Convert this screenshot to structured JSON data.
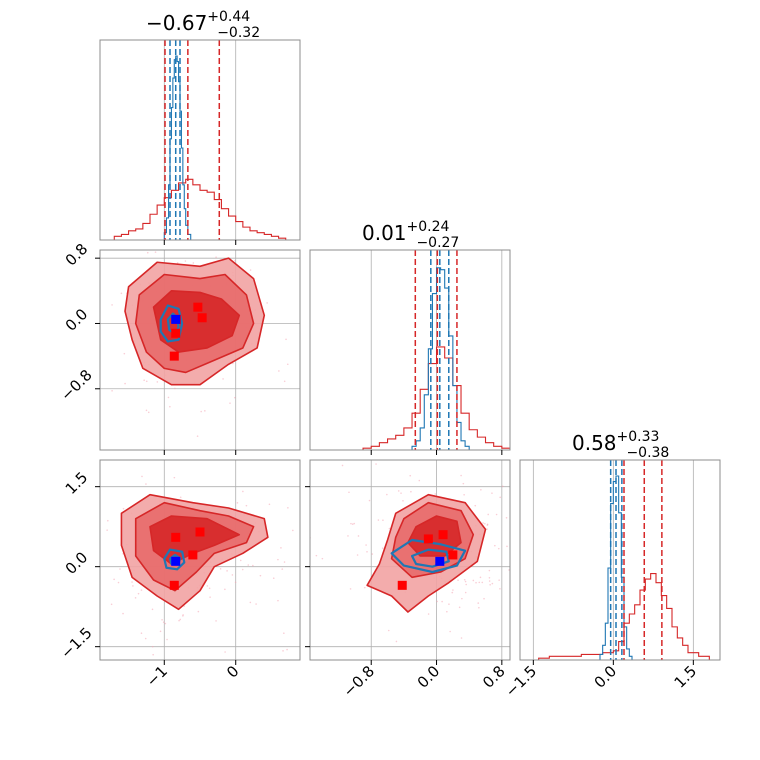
{
  "colors": {
    "red": "#d62728",
    "red_light": "#f2a3a3",
    "red_mid": "#e86a6a",
    "blue": "#1f77b4",
    "marker_red": "#ff0000",
    "marker_blue": "#0000ff"
  },
  "chart_data": {
    "type": "corner",
    "grid": true,
    "params": [
      {
        "range": [
          -1.9,
          0.9
        ],
        "ticks": [
          -1,
          0
        ],
        "tick_labels": [
          "−1",
          "0"
        ],
        "title": {
          "median": "−0.67",
          "plus": "+0.44",
          "minus": "−0.32"
        },
        "red_quantiles": [
          -0.99,
          -0.67,
          -0.23
        ],
        "blue_quantiles": [
          -0.92,
          -0.84,
          -0.78
        ]
      },
      {
        "range": [
          -1.55,
          0.9
        ],
        "ticks": [
          -0.8,
          0.0,
          0.8
        ],
        "tick_labels": [
          "−0.8",
          "0.0",
          "0.8"
        ],
        "title": {
          "median": "0.01",
          "plus": "+0.24",
          "minus": "−0.27"
        },
        "red_quantiles": [
          -0.26,
          0.01,
          0.25
        ],
        "blue_quantiles": [
          -0.07,
          0.04,
          0.15
        ]
      },
      {
        "range": [
          -1.75,
          2.0
        ],
        "ticks": [
          -1.5,
          0.0,
          1.5
        ],
        "tick_labels": [
          "−1.5",
          "0.0",
          "1.5"
        ],
        "title": {
          "median": "0.58",
          "plus": "+0.33",
          "minus": "−0.38"
        },
        "red_quantiles": [
          0.2,
          0.58,
          0.91
        ],
        "blue_quantiles": [
          -0.05,
          0.05,
          0.16
        ]
      }
    ],
    "hist_red": [
      {
        "x": [
          -1.9,
          -1.8,
          -1.7,
          -1.6,
          -1.5,
          -1.4,
          -1.3,
          -1.2,
          -1.1,
          -1.0,
          -0.9,
          -0.8,
          -0.7,
          -0.6,
          -0.5,
          -0.4,
          -0.3,
          -0.2,
          -0.1,
          0.0,
          0.1,
          0.2,
          0.3,
          0.4,
          0.5,
          0.6,
          0.7
        ],
        "y": [
          0,
          0,
          0.02,
          0.03,
          0.05,
          0.06,
          0.09,
          0.14,
          0.19,
          0.23,
          0.27,
          0.31,
          0.33,
          0.3,
          0.27,
          0.26,
          0.22,
          0.17,
          0.13,
          0.1,
          0.07,
          0.05,
          0.04,
          0.03,
          0.02,
          0.01,
          0
        ]
      },
      {
        "x": [
          -1.0,
          -0.9,
          -0.8,
          -0.7,
          -0.6,
          -0.5,
          -0.4,
          -0.3,
          -0.2,
          -0.1,
          0.0,
          0.1,
          0.2,
          0.3,
          0.4,
          0.5,
          0.6,
          0.7,
          0.8,
          0.9
        ],
        "y": [
          0,
          0.01,
          0.02,
          0.04,
          0.06,
          0.08,
          0.12,
          0.2,
          0.33,
          0.47,
          0.56,
          0.5,
          0.35,
          0.2,
          0.11,
          0.07,
          0.04,
          0.02,
          0.01,
          0
        ]
      },
      {
        "x": [
          -1.6,
          -1.4,
          -1.2,
          -1.0,
          -0.8,
          -0.6,
          -0.4,
          -0.2,
          0.0,
          0.1,
          0.2,
          0.3,
          0.4,
          0.5,
          0.6,
          0.7,
          0.8,
          0.9,
          1.0,
          1.1,
          1.2,
          1.3,
          1.4,
          1.6,
          1.8
        ],
        "y": [
          0,
          0.01,
          0.02,
          0.02,
          0.02,
          0.03,
          0.03,
          0.04,
          0.05,
          0.1,
          0.2,
          0.25,
          0.3,
          0.38,
          0.44,
          0.47,
          0.42,
          0.35,
          0.28,
          0.18,
          0.12,
          0.08,
          0.04,
          0.02,
          0
        ]
      }
    ],
    "hist_blue": [
      {
        "x": [
          -1.05,
          -1.0,
          -0.97,
          -0.94,
          -0.92,
          -0.9,
          -0.88,
          -0.86,
          -0.84,
          -0.82,
          -0.8,
          -0.78,
          -0.76,
          -0.74,
          -0.72,
          -0.7,
          -0.67,
          -0.63
        ],
        "y": [
          0,
          0.04,
          0.12,
          0.3,
          0.55,
          0.72,
          0.88,
          0.98,
          1.0,
          0.97,
          0.86,
          0.7,
          0.5,
          0.3,
          0.17,
          0.08,
          0.03,
          0
        ]
      },
      {
        "x": [
          -0.35,
          -0.3,
          -0.25,
          -0.2,
          -0.15,
          -0.1,
          -0.05,
          0.0,
          0.05,
          0.1,
          0.15,
          0.2,
          0.25,
          0.3,
          0.35,
          0.4
        ],
        "y": [
          0,
          0.02,
          0.05,
          0.12,
          0.3,
          0.55,
          0.85,
          0.99,
          0.98,
          0.88,
          0.62,
          0.35,
          0.15,
          0.05,
          0.02,
          0
        ]
      },
      {
        "x": [
          -0.3,
          -0.25,
          -0.2,
          -0.15,
          -0.1,
          -0.05,
          0.0,
          0.05,
          0.1,
          0.15,
          0.2,
          0.25,
          0.3,
          0.35
        ],
        "y": [
          0,
          0.03,
          0.08,
          0.2,
          0.5,
          0.85,
          0.97,
          1.0,
          0.8,
          0.45,
          0.18,
          0.06,
          0.02,
          0
        ]
      }
    ],
    "pairs": [
      {
        "row": 1,
        "col": 0,
        "red_contours": [
          [
            [
              -1.5,
              0.45
            ],
            [
              -1.1,
              0.75
            ],
            [
              -0.5,
              0.7
            ],
            [
              -0.1,
              0.8
            ],
            [
              0.25,
              0.55
            ],
            [
              0.4,
              0.1
            ],
            [
              0.3,
              -0.3
            ],
            [
              -0.1,
              -0.5
            ],
            [
              -0.5,
              -0.75
            ],
            [
              -0.9,
              -0.75
            ],
            [
              -1.3,
              -0.55
            ],
            [
              -1.45,
              -0.2
            ],
            [
              -1.55,
              0.15
            ]
          ],
          [
            [
              -1.35,
              0.35
            ],
            [
              -1.0,
              0.6
            ],
            [
              -0.5,
              0.55
            ],
            [
              -0.15,
              0.6
            ],
            [
              0.15,
              0.35
            ],
            [
              0.25,
              0.0
            ],
            [
              0.1,
              -0.3
            ],
            [
              -0.3,
              -0.45
            ],
            [
              -0.7,
              -0.6
            ],
            [
              -1.0,
              -0.55
            ],
            [
              -1.25,
              -0.35
            ],
            [
              -1.4,
              0.0
            ]
          ],
          [
            [
              -1.15,
              0.2
            ],
            [
              -0.9,
              0.4
            ],
            [
              -0.5,
              0.38
            ],
            [
              -0.2,
              0.3
            ],
            [
              0.05,
              0.1
            ],
            [
              -0.05,
              -0.15
            ],
            [
              -0.4,
              -0.3
            ],
            [
              -0.8,
              -0.35
            ],
            [
              -1.05,
              -0.2
            ]
          ]
        ],
        "blue_contours": [
          [
            [
              -1.05,
              0.05
            ],
            [
              -0.95,
              0.22
            ],
            [
              -0.8,
              0.18
            ],
            [
              -0.75,
              0.0
            ],
            [
              -0.8,
              -0.2
            ],
            [
              -0.95,
              -0.22
            ],
            [
              -1.05,
              -0.1
            ]
          ],
          [
            [
              -0.95,
              0.05
            ],
            [
              -0.88,
              0.12
            ],
            [
              -0.82,
              0.08
            ],
            [
              -0.8,
              -0.05
            ],
            [
              -0.86,
              -0.12
            ],
            [
              -0.93,
              -0.08
            ]
          ]
        ],
        "red_markers": [
          [
            -0.53,
            0.2
          ],
          [
            -0.47,
            0.07
          ],
          [
            -0.83,
            0.05
          ],
          [
            -0.84,
            -0.12
          ],
          [
            -0.86,
            -0.4
          ]
        ],
        "blue_markers": [
          [
            -0.84,
            0.05
          ]
        ]
      },
      {
        "row": 2,
        "col": 0,
        "red_contours": [
          [
            [
              -1.6,
              1.0
            ],
            [
              -1.2,
              1.35
            ],
            [
              -0.6,
              1.2
            ],
            [
              -0.1,
              1.1
            ],
            [
              0.4,
              0.9
            ],
            [
              0.45,
              0.55
            ],
            [
              0.1,
              0.25
            ],
            [
              -0.3,
              0.0
            ],
            [
              -0.5,
              -0.45
            ],
            [
              -0.8,
              -0.8
            ],
            [
              -1.1,
              -0.55
            ],
            [
              -1.45,
              -0.2
            ],
            [
              -1.6,
              0.4
            ]
          ],
          [
            [
              -1.4,
              0.9
            ],
            [
              -1.0,
              1.2
            ],
            [
              -0.5,
              1.05
            ],
            [
              -0.1,
              0.95
            ],
            [
              0.25,
              0.75
            ],
            [
              0.15,
              0.45
            ],
            [
              -0.3,
              0.25
            ],
            [
              -0.55,
              -0.1
            ],
            [
              -0.85,
              -0.45
            ],
            [
              -1.15,
              -0.25
            ],
            [
              -1.4,
              0.2
            ]
          ],
          [
            [
              -1.2,
              0.75
            ],
            [
              -0.9,
              0.95
            ],
            [
              -0.4,
              0.9
            ],
            [
              0.05,
              0.6
            ],
            [
              -0.3,
              0.4
            ],
            [
              -0.6,
              0.25
            ],
            [
              -0.9,
              0.05
            ],
            [
              -1.15,
              0.3
            ]
          ]
        ],
        "blue_contours": [
          [
            [
              -1.0,
              0.15
            ],
            [
              -0.92,
              0.32
            ],
            [
              -0.75,
              0.28
            ],
            [
              -0.72,
              0.08
            ],
            [
              -0.82,
              -0.05
            ],
            [
              -0.97,
              -0.02
            ]
          ],
          [
            [
              -0.92,
              0.15
            ],
            [
              -0.85,
              0.22
            ],
            [
              -0.78,
              0.16
            ],
            [
              -0.8,
              0.05
            ],
            [
              -0.9,
              0.05
            ]
          ]
        ],
        "red_markers": [
          [
            -0.5,
            0.65
          ],
          [
            -0.84,
            0.55
          ],
          [
            -0.6,
            0.22
          ],
          [
            -0.86,
            -0.35
          ]
        ],
        "blue_markers": [
          [
            -0.84,
            0.1
          ]
        ]
      },
      {
        "row": 2,
        "col": 1,
        "red_contours": [
          [
            [
              -0.5,
              1.0
            ],
            [
              -0.1,
              1.35
            ],
            [
              0.35,
              1.2
            ],
            [
              0.6,
              0.7
            ],
            [
              0.5,
              0.1
            ],
            [
              0.15,
              -0.3
            ],
            [
              -0.1,
              -0.55
            ],
            [
              -0.35,
              -0.85
            ],
            [
              -0.55,
              -0.55
            ],
            [
              -0.85,
              -0.35
            ],
            [
              -0.7,
              0.05
            ],
            [
              -0.6,
              0.5
            ]
          ],
          [
            [
              -0.4,
              0.9
            ],
            [
              -0.1,
              1.2
            ],
            [
              0.3,
              1.05
            ],
            [
              0.45,
              0.6
            ],
            [
              0.35,
              0.15
            ],
            [
              0.05,
              -0.1
            ],
            [
              -0.3,
              -0.2
            ],
            [
              -0.55,
              0.15
            ],
            [
              -0.5,
              0.55
            ]
          ],
          [
            [
              -0.25,
              0.75
            ],
            [
              0.0,
              0.95
            ],
            [
              0.25,
              0.85
            ],
            [
              0.3,
              0.45
            ],
            [
              0.1,
              0.2
            ],
            [
              -0.2,
              0.2
            ],
            [
              -0.35,
              0.45
            ]
          ]
        ],
        "blue_contours": [
          [
            [
              -0.55,
              0.25
            ],
            [
              -0.3,
              0.5
            ],
            [
              0.05,
              0.42
            ],
            [
              0.35,
              0.3
            ],
            [
              0.25,
              0.02
            ],
            [
              -0.05,
              -0.1
            ],
            [
              -0.4,
              0.02
            ]
          ],
          [
            [
              -0.3,
              0.2
            ],
            [
              -0.1,
              0.32
            ],
            [
              0.12,
              0.28
            ],
            [
              0.15,
              0.1
            ],
            [
              -0.05,
              0.0
            ],
            [
              -0.25,
              0.05
            ]
          ]
        ],
        "red_markers": [
          [
            -0.1,
            0.52
          ],
          [
            0.08,
            0.6
          ],
          [
            0.2,
            0.22
          ],
          [
            -0.42,
            -0.35
          ]
        ],
        "blue_markers": [
          [
            0.04,
            0.1
          ]
        ]
      }
    ]
  }
}
